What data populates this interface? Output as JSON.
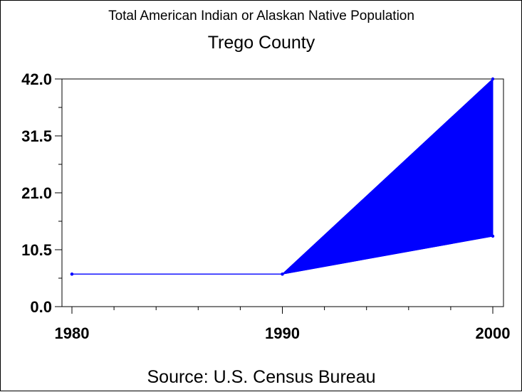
{
  "chart_data": {
    "type": "area",
    "title": "Total American Indian or Alaskan Native Population",
    "subtitle": "Trego County",
    "footnote": "Source: U.S. Census Bureau",
    "x": [
      1980,
      1990,
      2000
    ],
    "x_ticks": [
      "1980",
      "1990",
      "2000"
    ],
    "xlim": [
      1980,
      2000
    ],
    "y_ticks": [
      "0.0",
      "10.5",
      "21.0",
      "31.5",
      "42.0"
    ],
    "ylim": [
      0,
      42
    ],
    "series": [
      {
        "values": [
          6,
          6,
          13
        ]
      },
      {
        "values": [
          6,
          6,
          42
        ]
      }
    ],
    "fill_between": true,
    "grid": false,
    "color": "#0000ff"
  }
}
